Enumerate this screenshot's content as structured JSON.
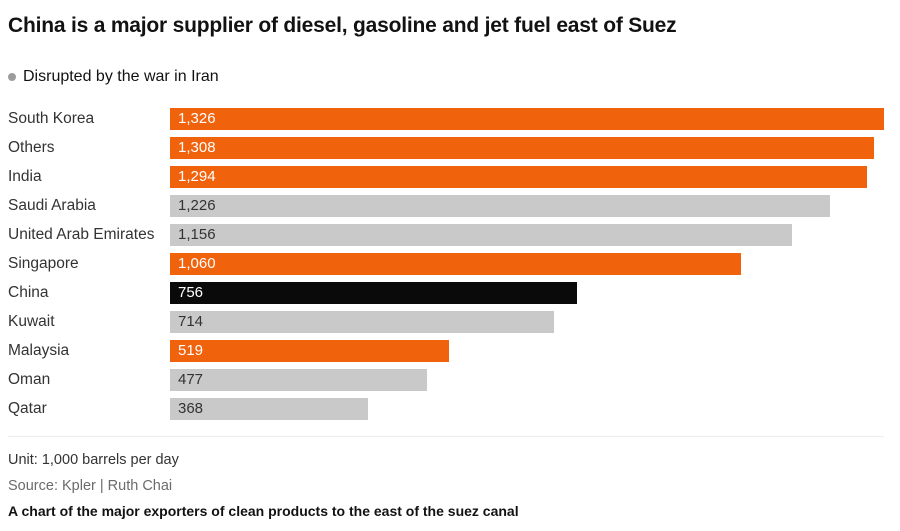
{
  "chart_data": {
    "type": "bar",
    "orientation": "horizontal",
    "title": "China is a major supplier of diesel, gasoline and jet fuel east of Suez",
    "legend": {
      "label": "Disrupted by the war in Iran",
      "color": "#9c9c9c"
    },
    "categories": [
      "South Korea",
      "Others",
      "India",
      "Saudi Arabia",
      "United Arab Emirates",
      "Singapore",
      "China",
      "Kuwait",
      "Malaysia",
      "Oman",
      "Qatar"
    ],
    "values": [
      1326,
      1308,
      1294,
      1226,
      1156,
      1060,
      756,
      714,
      519,
      477,
      368
    ],
    "value_labels": [
      "1,326",
      "1,308",
      "1,294",
      "1,226",
      "1,156",
      "1,060",
      "756",
      "714",
      "519",
      "477",
      "368"
    ],
    "bar_colors": [
      "orange",
      "orange",
      "orange",
      "gray",
      "gray",
      "orange",
      "black",
      "gray",
      "orange",
      "gray",
      "gray"
    ],
    "colors": {
      "orange": "#f1620d",
      "gray": "#c9c9c9",
      "black": "#0a0a0a"
    },
    "value_text_colors": {
      "orange": "#ffffff",
      "gray": "#333333",
      "black": "#ffffff"
    },
    "xlim": [
      0,
      1326
    ],
    "grid": false,
    "legend_position": "top-left",
    "xlabel": "",
    "ylabel": ""
  },
  "footer": {
    "unit": "Unit: 1,000 barrels per day",
    "source": "Source: Kpler | Ruth Chai",
    "caption": "A chart of the major exporters of clean products to the east of the suez canal"
  }
}
